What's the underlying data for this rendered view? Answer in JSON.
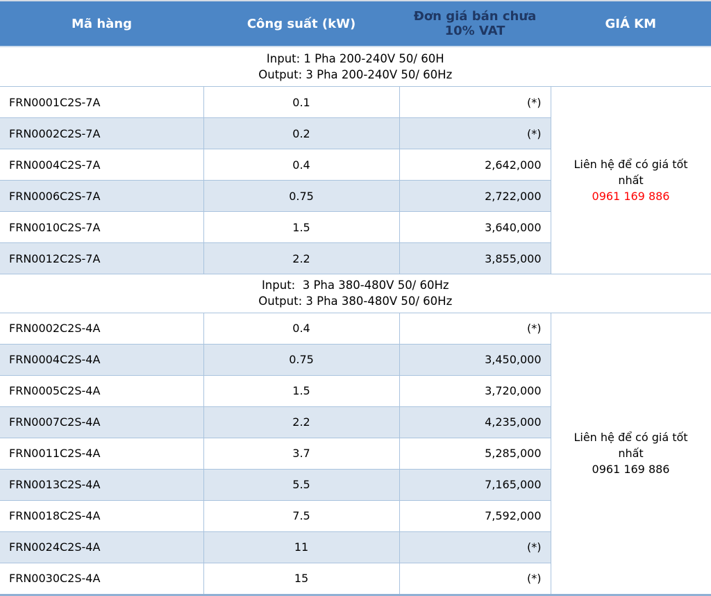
{
  "colors": {
    "header_blue": "#4C86C6",
    "header_red": "#FF0000",
    "header_navy_text": "#1F3864",
    "alt_row_bg": "#DCE6F1",
    "border_blue": "#A9C3DE",
    "phone_red": "#FF0000"
  },
  "table_header": {
    "product_code": "Mã hàng",
    "power": "Công suất (kW)",
    "unit_price": "Đơn giá bán chưa 10% VAT",
    "promo_price": "GIÁ KM"
  },
  "sections": [
    {
      "input_line": "Input: 1 Pha 200-240V 50/ 60H",
      "output_line": "Output: 3 Pha 200-240V 50/ 60Hz",
      "promo": {
        "text": "Liên hệ để có giá tốt nhất",
        "phone": "0961 169 886",
        "phone_color": "#FF0000"
      },
      "rows": [
        {
          "code": "FRN0001C2S-7A",
          "power": "0.1",
          "price": "(*)"
        },
        {
          "code": "FRN0002C2S-7A",
          "power": "0.2",
          "price": "(*)"
        },
        {
          "code": "FRN0004C2S-7A",
          "power": "0.4",
          "price": "2,642,000"
        },
        {
          "code": "FRN0006C2S-7A",
          "power": "0.75",
          "price": "2,722,000"
        },
        {
          "code": "FRN0010C2S-7A",
          "power": "1.5",
          "price": "3,640,000"
        },
        {
          "code": "FRN0012C2S-7A",
          "power": "2.2",
          "price": "3,855,000"
        }
      ]
    },
    {
      "input_line": "Input:  3 Pha 380-480V 50/ 60Hz",
      "output_line": "Output: 3 Pha 380-480V 50/ 60Hz",
      "promo": {
        "text": "Liên hệ để có giá tốt nhất",
        "phone": "0961 169 886",
        "phone_color": "#000000"
      },
      "rows": [
        {
          "code": "FRN0002C2S-4A",
          "power": "0.4",
          "price": "(*)"
        },
        {
          "code": "FRN0004C2S-4A",
          "power": "0.75",
          "price": "3,450,000"
        },
        {
          "code": "FRN0005C2S-4A",
          "power": "1.5",
          "price": "3,720,000"
        },
        {
          "code": "FRN0007C2S-4A",
          "power": "2.2",
          "price": "4,235,000"
        },
        {
          "code": "FRN0011C2S-4A",
          "power": "3.7",
          "price": "5,285,000"
        },
        {
          "code": "FRN0013C2S-4A",
          "power": "5.5",
          "price": "7,165,000"
        },
        {
          "code": "FRN0018C2S-4A",
          "power": "7.5",
          "price": "7,592,000"
        },
        {
          "code": "FRN0024C2S-4A",
          "power": "11",
          "price": "(*)"
        },
        {
          "code": "FRN0030C2S-4A",
          "power": "15",
          "price": "(*)"
        }
      ]
    }
  ]
}
